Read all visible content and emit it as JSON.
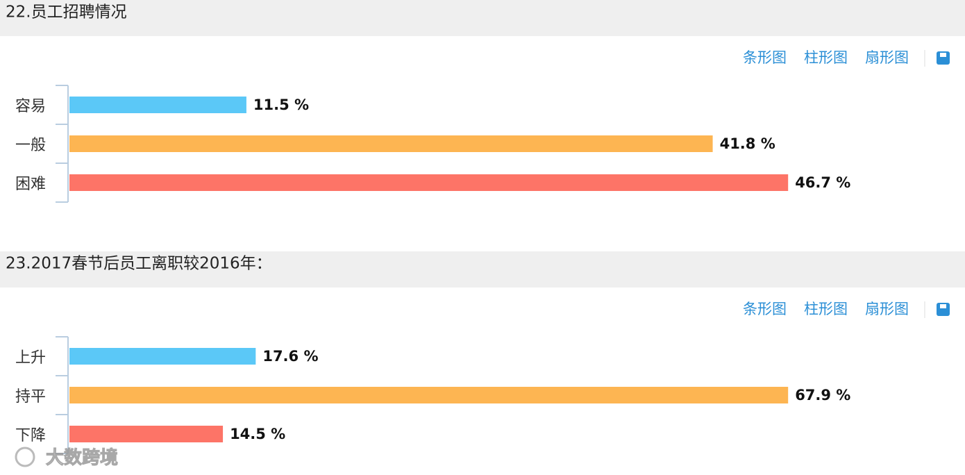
{
  "toolbar": [
    "条形图",
    "柱形图",
    "扇形图"
  ],
  "watermark": "大数跨境",
  "chart_data": [
    {
      "type": "bar",
      "orientation": "horizontal",
      "title": "22.员工招聘情况",
      "categories": [
        "容易",
        "一般",
        "困难"
      ],
      "values": [
        11.5,
        41.8,
        46.7
      ],
      "value_labels": [
        "11.5 %",
        "41.8 %",
        "46.7 %"
      ],
      "colors": [
        "#5bc8f7",
        "#fdb552",
        "#fd7467"
      ]
    },
    {
      "type": "bar",
      "orientation": "horizontal",
      "title": "23.2017春节后员工离职较2016年：",
      "categories": [
        "上升",
        "持平",
        "下降"
      ],
      "values": [
        17.6,
        67.9,
        14.5
      ],
      "value_labels": [
        "17.6 %",
        "67.9 %",
        "14.5 %"
      ],
      "colors": [
        "#5bc8f7",
        "#fdb552",
        "#fd7467"
      ]
    }
  ]
}
